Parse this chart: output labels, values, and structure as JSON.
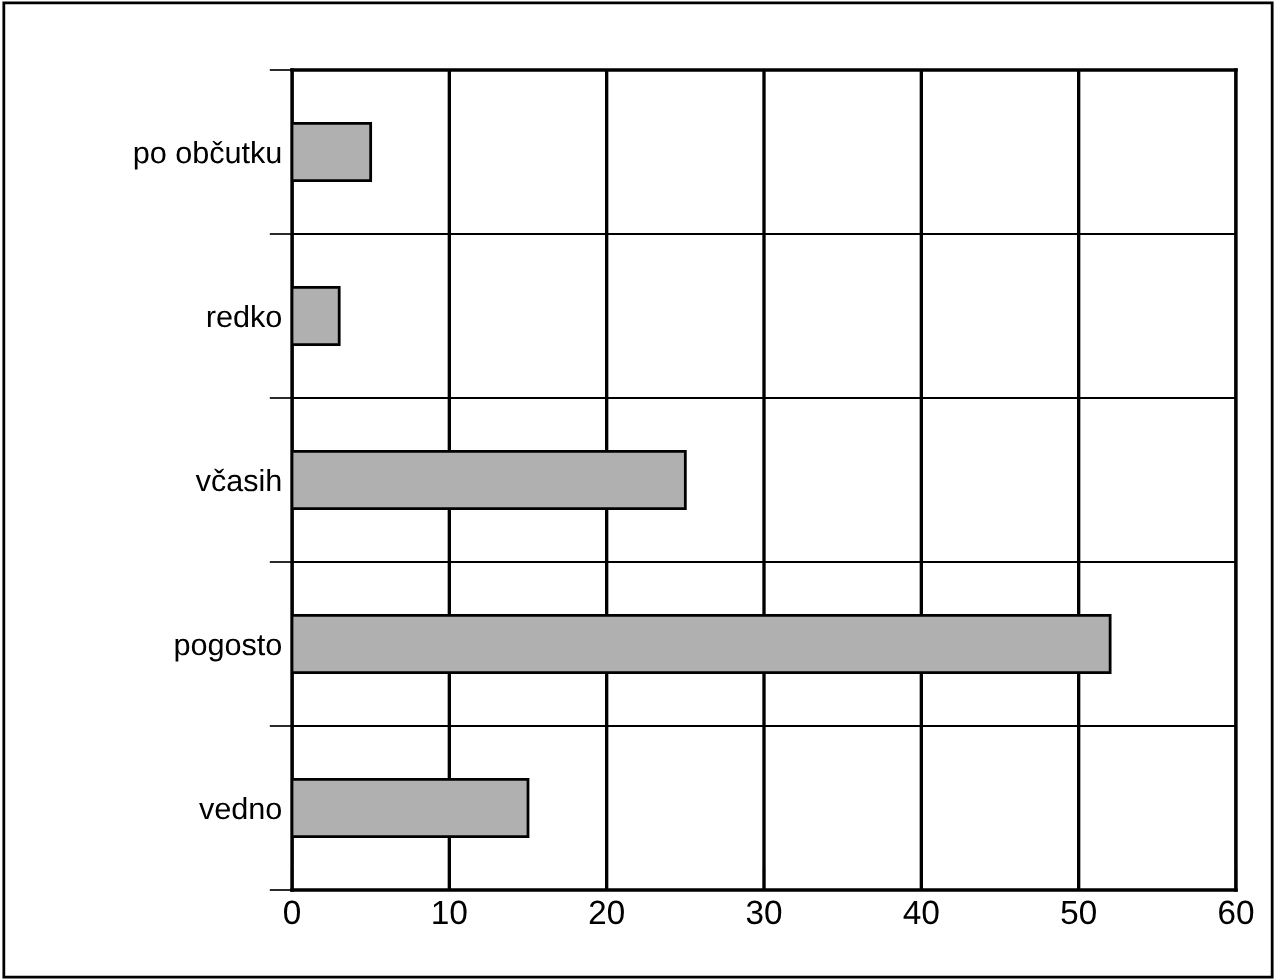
{
  "chart_data": {
    "type": "bar",
    "orientation": "horizontal",
    "categories": [
      "po občutku",
      "redko",
      "včasih",
      "pogosto",
      "vedno"
    ],
    "values": [
      5,
      3,
      25,
      52,
      15
    ],
    "color": "#b0b0b0",
    "xlim": [
      0,
      60
    ],
    "xticks": [
      0,
      10,
      20,
      30,
      40,
      50,
      60
    ],
    "grid": true
  }
}
